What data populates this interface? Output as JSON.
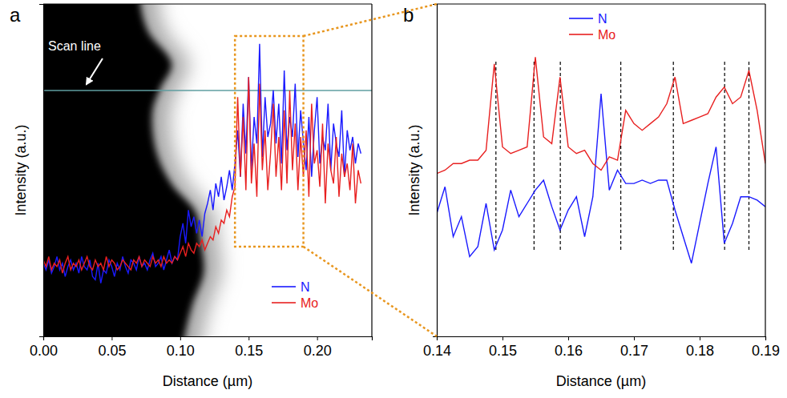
{
  "chart_data": [
    {
      "type": "line",
      "panel_label": "a",
      "annotation": "Scan line",
      "x_label": "Distance (µm)",
      "y_label": "Intensity (a.u.)",
      "xlim": [
        0,
        0.24
      ],
      "xticks": [
        {
          "value": 0,
          "label": "0.00"
        },
        0.05,
        {
          "value": 0.1,
          "label": "0.10"
        },
        0.15,
        {
          "value": 0.2,
          "label": "0.20"
        }
      ],
      "ylim": [
        0,
        100
      ],
      "tick_labels": "x",
      "legend": "lower right",
      "x": [
        0,
        0.002,
        0.004,
        0.006,
        0.008,
        0.01,
        0.012,
        0.014,
        0.016,
        0.018,
        0.02,
        0.022,
        0.024,
        0.026,
        0.028,
        0.03,
        0.032,
        0.034,
        0.036,
        0.038,
        0.04,
        0.042,
        0.044,
        0.046,
        0.048,
        0.05,
        0.052,
        0.054,
        0.056,
        0.058,
        0.06,
        0.062,
        0.064,
        0.066,
        0.068,
        0.07,
        0.072,
        0.074,
        0.076,
        0.078,
        0.08,
        0.082,
        0.084,
        0.086,
        0.088,
        0.09,
        0.092,
        0.094,
        0.096,
        0.098,
        0.1,
        0.102,
        0.104,
        0.106,
        0.108,
        0.11,
        0.112,
        0.114,
        0.116,
        0.118,
        0.12,
        0.122,
        0.124,
        0.126,
        0.128,
        0.13,
        0.132,
        0.134,
        0.136,
        0.138,
        0.14,
        0.142,
        0.144,
        0.146,
        0.148,
        0.15,
        0.152,
        0.154,
        0.156,
        0.158,
        0.16,
        0.162,
        0.164,
        0.166,
        0.168,
        0.17,
        0.172,
        0.174,
        0.176,
        0.178,
        0.18,
        0.182,
        0.184,
        0.186,
        0.188,
        0.19,
        0.192,
        0.194,
        0.196,
        0.198,
        0.2,
        0.202,
        0.204,
        0.206,
        0.208,
        0.21,
        0.212,
        0.214,
        0.216,
        0.218,
        0.22,
        0.222,
        0.224,
        0.226,
        0.228,
        0.23,
        0.232
      ],
      "series": [
        {
          "name": "N",
          "color": "#1a1aff",
          "values": [
            22,
            20,
            23,
            19,
            21,
            24,
            20,
            22,
            18,
            21,
            23,
            20,
            22,
            19,
            24,
            21,
            20,
            23,
            18,
            17,
            22,
            16,
            20,
            19,
            23,
            21,
            18,
            22,
            20,
            24,
            21,
            19,
            23,
            22,
            20,
            24,
            21,
            22,
            20,
            23,
            25,
            21,
            22,
            24,
            20,
            23,
            26,
            22,
            24,
            23,
            30,
            34,
            28,
            38,
            33,
            36,
            31,
            35,
            30,
            37,
            40,
            44,
            38,
            46,
            42,
            48,
            41,
            45,
            50,
            44,
            52,
            62,
            48,
            70,
            55,
            78,
            50,
            66,
            58,
            88,
            54,
            72,
            60,
            64,
            74,
            58,
            70,
            52,
            80,
            56,
            66,
            60,
            76,
            54,
            68,
            58,
            50,
            66,
            48,
            62,
            72,
            52,
            60,
            56,
            70,
            50,
            64,
            58,
            54,
            68,
            48,
            62,
            56,
            60,
            52,
            58,
            55
          ]
        },
        {
          "name": "Mo",
          "color": "#e82020",
          "values": [
            23,
            21,
            24,
            20,
            22,
            21,
            23,
            19,
            22,
            24,
            20,
            22,
            21,
            23,
            20,
            22,
            24,
            21,
            20,
            23,
            21,
            22,
            20,
            24,
            21,
            23,
            22,
            20,
            21,
            23,
            22,
            21,
            20,
            23,
            22,
            24,
            21,
            23,
            22,
            21,
            24,
            22,
            23,
            21,
            24,
            22,
            23,
            22,
            24,
            23,
            25,
            27,
            24,
            28,
            26,
            25,
            28,
            27,
            29,
            26,
            28,
            30,
            29,
            33,
            31,
            35,
            34,
            38,
            36,
            42,
            45,
            72,
            48,
            66,
            44,
            78,
            46,
            58,
            42,
            76,
            50,
            62,
            44,
            55,
            70,
            48,
            60,
            44,
            68,
            46,
            74,
            50,
            64,
            44,
            60,
            48,
            62,
            42,
            70,
            52,
            56,
            45,
            64,
            40,
            58,
            50,
            46,
            60,
            42,
            55,
            48,
            52,
            44,
            58,
            40,
            50,
            46
          ]
        }
      ]
    },
    {
      "type": "line",
      "panel_label": "b",
      "x_label": "Distance (µm)",
      "y_label": "Intensity (a.u.)",
      "xlim": [
        0.14,
        0.19
      ],
      "xticks": [
        0.14,
        0.15,
        0.16,
        0.17,
        0.18,
        0.19
      ],
      "ylim": [
        0,
        100
      ],
      "tick_labels": "x",
      "legend": "upper center",
      "guide_lines": [
        0.149,
        0.1548,
        0.1588,
        0.168,
        0.176,
        0.1838,
        0.1875
      ],
      "x": [
        0.14,
        0.14125,
        0.1425,
        0.14375,
        0.145,
        0.14625,
        0.1475,
        0.14875,
        0.15,
        0.15125,
        0.1525,
        0.15375,
        0.155,
        0.15625,
        0.1575,
        0.15875,
        0.16,
        0.16125,
        0.1625,
        0.16375,
        0.165,
        0.16625,
        0.1675,
        0.16875,
        0.17,
        0.17125,
        0.1725,
        0.17375,
        0.175,
        0.17625,
        0.1775,
        0.17875,
        0.18,
        0.18125,
        0.1825,
        0.18375,
        0.185,
        0.18625,
        0.1875,
        0.18875,
        0.19
      ],
      "series": [
        {
          "name": "N",
          "color": "#1a1aff",
          "values": [
            37,
            45,
            30,
            36,
            24,
            27,
            40,
            26,
            32,
            44,
            36,
            40,
            44,
            47,
            39,
            32,
            38,
            42,
            30,
            42,
            73,
            44,
            50,
            46,
            46,
            47,
            46,
            47,
            47,
            38,
            30,
            22,
            34,
            46,
            57,
            28,
            34,
            42,
            42,
            41,
            39
          ]
        },
        {
          "name": "Mo",
          "color": "#e82020",
          "values": [
            49,
            50,
            52,
            52,
            53,
            53,
            56,
            82,
            57,
            55,
            56,
            57,
            84,
            60,
            58,
            78,
            57,
            55,
            56,
            52,
            50,
            54,
            53,
            68,
            64,
            62,
            64,
            66,
            70,
            78,
            64,
            65,
            66,
            67,
            72,
            75,
            70,
            72,
            80,
            68,
            52
          ]
        }
      ]
    }
  ]
}
